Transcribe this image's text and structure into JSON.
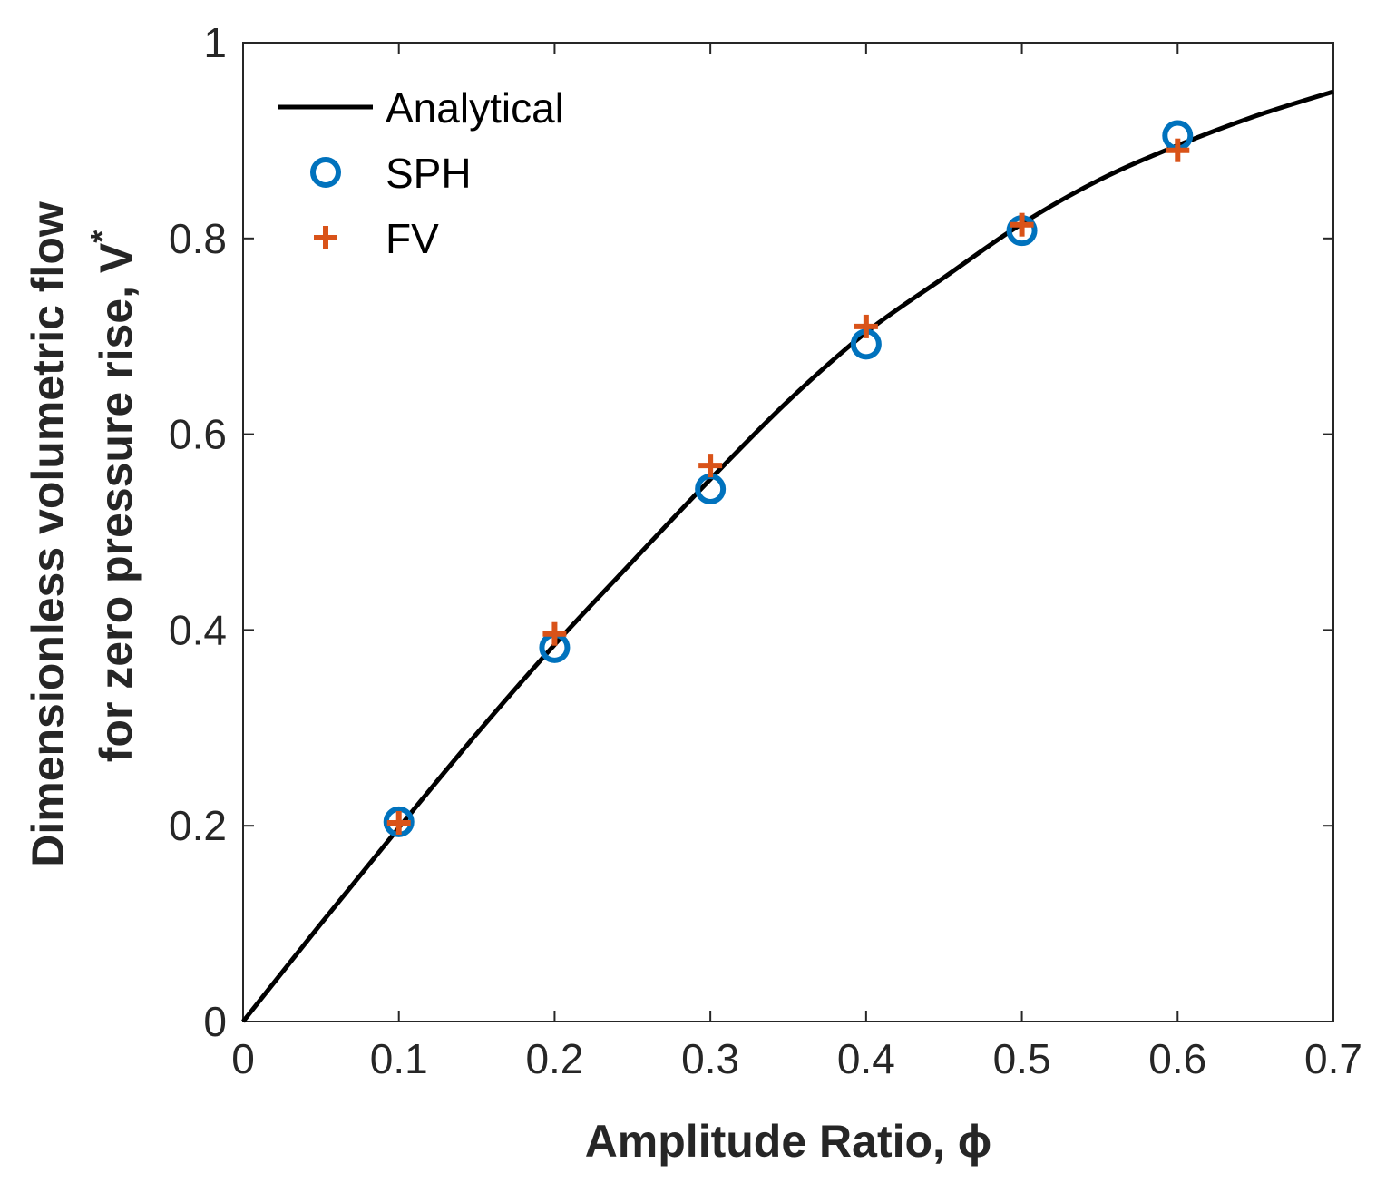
{
  "chart_data": {
    "type": "line",
    "title": "",
    "xlabel": "Amplitude Ratio, ϕ",
    "ylabel_line1": "Dimensionless volumetric flow",
    "ylabel_line2": "for zero pressure rise, V",
    "ylabel_superscript": "*",
    "xlim": [
      0,
      0.7
    ],
    "ylim": [
      0,
      1
    ],
    "xticks": [
      "0",
      "0.1",
      "0.2",
      "0.3",
      "0.4",
      "0.5",
      "0.6",
      "0.7"
    ],
    "yticks": [
      "0",
      "0.2",
      "0.4",
      "0.6",
      "0.8",
      "1"
    ],
    "grid": false,
    "legend_position": "top-left",
    "series": [
      {
        "name": "Analytical",
        "style": "line",
        "color": "#000000",
        "x": [
          0,
          0.05,
          0.1,
          0.15,
          0.2,
          0.25,
          0.3,
          0.35,
          0.4,
          0.45,
          0.5,
          0.55,
          0.6,
          0.65,
          0.7
        ],
        "y": [
          0,
          0.1,
          0.198,
          0.294,
          0.385,
          0.47,
          0.554,
          0.634,
          0.704,
          0.76,
          0.815,
          0.86,
          0.895,
          0.925,
          0.95
        ]
      },
      {
        "name": "SPH",
        "style": "circle",
        "color": "#0072BD",
        "x": [
          0.1,
          0.2,
          0.3,
          0.4,
          0.5,
          0.6
        ],
        "y": [
          0.204,
          0.382,
          0.544,
          0.692,
          0.808,
          0.905
        ]
      },
      {
        "name": "FV",
        "style": "plus",
        "color": "#D95319",
        "x": [
          0.1,
          0.2,
          0.3,
          0.4,
          0.5,
          0.6
        ],
        "y": [
          0.203,
          0.396,
          0.568,
          0.71,
          0.814,
          0.89
        ]
      }
    ]
  }
}
